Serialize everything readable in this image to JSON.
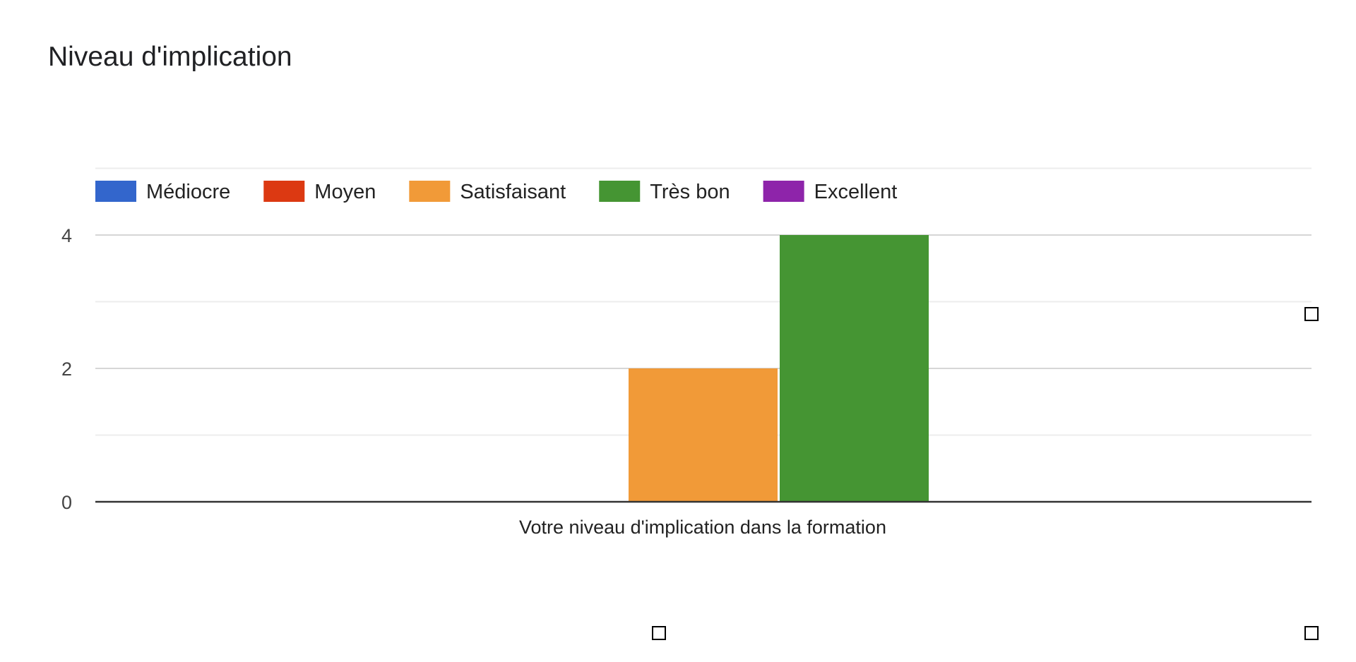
{
  "chart_data": {
    "type": "bar",
    "title": "Niveau d'implication",
    "xlabel": "Votre niveau d'implication dans la formation",
    "ylabel": "",
    "ylim": [
      0,
      5
    ],
    "yticks": [
      0,
      2,
      4
    ],
    "minor_yticks": [
      1,
      3,
      5
    ],
    "grid": true,
    "legend_position": "top",
    "categories": [
      "Votre niveau d'implication dans la formation"
    ],
    "series": [
      {
        "name": "Médiocre",
        "color": "#3366cc",
        "values": [
          0
        ]
      },
      {
        "name": "Moyen",
        "color": "#dc3912",
        "values": [
          0
        ]
      },
      {
        "name": "Satisfaisant",
        "color": "#f19a38",
        "values": [
          2
        ]
      },
      {
        "name": "Très bon",
        "color": "#459533",
        "values": [
          4
        ]
      },
      {
        "name": "Excellent",
        "color": "#8e24aa",
        "values": [
          0
        ]
      }
    ]
  }
}
